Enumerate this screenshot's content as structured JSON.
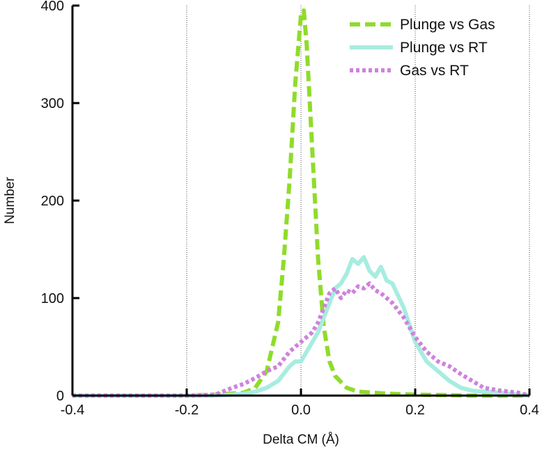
{
  "chart_data": {
    "type": "line",
    "title": "",
    "xlabel": "Delta CM (Å)",
    "ylabel": "Number",
    "xlim": [
      -0.4,
      0.4
    ],
    "ylim": [
      0,
      400
    ],
    "xticks": [
      -0.4,
      -0.2,
      0.0,
      0.2,
      0.4
    ],
    "xtick_labels": [
      "-0.4",
      "-0.2",
      "0.0",
      "0.2",
      "0.4"
    ],
    "yticks": [
      0,
      100,
      200,
      300,
      400
    ],
    "ytick_labels": [
      "0",
      "100",
      "200",
      "300",
      "400"
    ],
    "grid": "vertical dotted lines at x ticks",
    "legend_position": "top-right",
    "series": [
      {
        "name": "Plunge vs Gas",
        "color": "#8fdc2a",
        "style": "dashed",
        "x": [
          -0.4,
          -0.3,
          -0.2,
          -0.15,
          -0.1,
          -0.08,
          -0.06,
          -0.04,
          -0.03,
          -0.02,
          -0.01,
          0.0,
          0.005,
          0.01,
          0.02,
          0.03,
          0.04,
          0.05,
          0.06,
          0.08,
          0.1,
          0.15,
          0.2,
          0.3,
          0.4
        ],
        "y": [
          0,
          0,
          0,
          1,
          3,
          8,
          25,
          75,
          140,
          220,
          320,
          390,
          395,
          360,
          250,
          140,
          70,
          35,
          20,
          8,
          4,
          2,
          1,
          0,
          0
        ]
      },
      {
        "name": "Plunge vs RT",
        "color": "#a8ece0",
        "style": "solid",
        "x": [
          -0.4,
          -0.2,
          -0.15,
          -0.12,
          -0.1,
          -0.08,
          -0.06,
          -0.04,
          -0.02,
          -0.01,
          0.0,
          0.01,
          0.02,
          0.03,
          0.04,
          0.05,
          0.06,
          0.07,
          0.08,
          0.09,
          0.1,
          0.11,
          0.12,
          0.13,
          0.14,
          0.15,
          0.16,
          0.18,
          0.2,
          0.22,
          0.24,
          0.26,
          0.28,
          0.3,
          0.32,
          0.35,
          0.38,
          0.4
        ],
        "y": [
          0,
          0,
          0,
          1,
          2,
          4,
          8,
          15,
          30,
          35,
          35,
          45,
          55,
          65,
          80,
          95,
          110,
          115,
          125,
          140,
          135,
          142,
          128,
          122,
          132,
          118,
          115,
          90,
          55,
          35,
          25,
          15,
          8,
          5,
          4,
          3,
          1,
          0
        ]
      },
      {
        "name": "Gas vs RT",
        "color": "#cf82dd",
        "style": "dotted",
        "x": [
          -0.4,
          -0.2,
          -0.15,
          -0.12,
          -0.1,
          -0.08,
          -0.06,
          -0.04,
          -0.02,
          0.0,
          0.02,
          0.03,
          0.04,
          0.05,
          0.06,
          0.07,
          0.08,
          0.09,
          0.1,
          0.11,
          0.12,
          0.13,
          0.14,
          0.15,
          0.16,
          0.18,
          0.2,
          0.22,
          0.24,
          0.26,
          0.28,
          0.3,
          0.32,
          0.35,
          0.38,
          0.4
        ],
        "y": [
          0,
          0,
          1,
          8,
          12,
          18,
          25,
          30,
          45,
          55,
          65,
          75,
          90,
          105,
          110,
          100,
          108,
          105,
          112,
          110,
          115,
          108,
          105,
          100,
          95,
          80,
          60,
          45,
          35,
          30,
          22,
          15,
          8,
          5,
          3,
          0
        ]
      }
    ]
  }
}
